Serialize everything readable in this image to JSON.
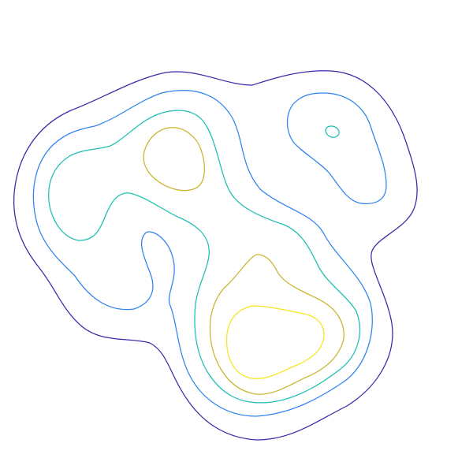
{
  "chart_data": {
    "type": "contour",
    "title": "",
    "xlabel": "",
    "ylabel": "",
    "axes_visible": false,
    "grid": false,
    "legend": "none",
    "colormap": "parula",
    "levels": [
      {
        "level": 1,
        "color": "#3e26a8",
        "regions": 1
      },
      {
        "level": 2,
        "color": "#2f84f0",
        "regions": 2
      },
      {
        "level": 3,
        "color": "#1cbfb0",
        "regions": 2
      },
      {
        "level": 4,
        "color": "#c9b42f",
        "regions": 2
      },
      {
        "level": 5,
        "color": "#f5e61e",
        "regions": 1
      }
    ],
    "peaks": [
      {
        "name": "upper-left",
        "max_level": 4
      },
      {
        "name": "lower-center",
        "max_level": 5
      },
      {
        "name": "upper-right",
        "max_level": 3
      }
    ]
  }
}
